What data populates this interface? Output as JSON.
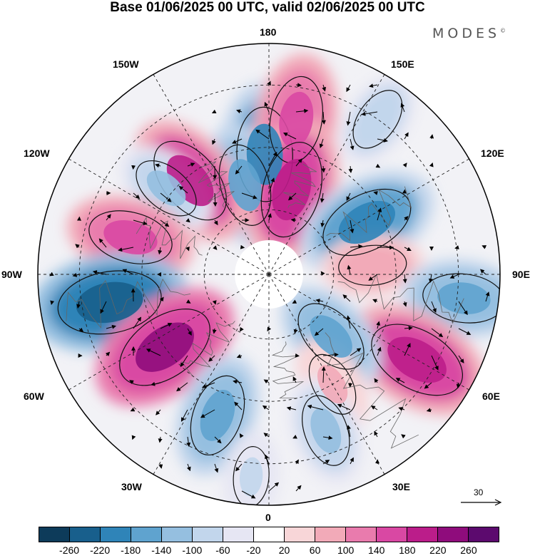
{
  "title": "Base 01/06/2025 00 UTC, valid 02/06/2025 00 UTC",
  "brand": "MODES",
  "brand_mark": "©",
  "longitude_labels": {
    "top": "180",
    "top_left": "150W",
    "top_right": "150E",
    "upper_left": "120W",
    "upper_right": "120E",
    "left": "90W",
    "right": "90E",
    "lower_left": "60W",
    "lower_right": "60E",
    "bottom_left": "30W",
    "bottom_right": "30E",
    "bottom": "0"
  },
  "reference_vector": "30",
  "colorbar": {
    "colors": [
      "#0d3b5a",
      "#185f8c",
      "#2f84b8",
      "#5fa3cf",
      "#95bfe0",
      "#c2d6ec",
      "#e6e6f3",
      "#ffffff",
      "#f8d6d8",
      "#f2aab8",
      "#e97bad",
      "#d948a3",
      "#bb1d8a",
      "#8f0c7c",
      "#5c0a6e"
    ],
    "ticks": [
      "-260",
      "-220",
      "-180",
      "-140",
      "-100",
      "-60",
      "-20",
      "20",
      "60",
      "100",
      "140",
      "180",
      "220",
      "260"
    ]
  },
  "map": {
    "projection": "north polar stereographic",
    "field": "anomaly",
    "anomaly_features": [
      {
        "lon": -178,
        "dist": 0.52,
        "value": -200
      },
      {
        "lon": -165,
        "dist": 0.4,
        "value": -150
      },
      {
        "lon": 170,
        "dist": 0.68,
        "value": 170
      },
      {
        "lon": 165,
        "dist": 0.38,
        "value": 210
      },
      {
        "lon": 145,
        "dist": 0.82,
        "value": -80
      },
      {
        "lon": -140,
        "dist": 0.53,
        "value": 190
      },
      {
        "lon": -130,
        "dist": 0.58,
        "value": -100
      },
      {
        "lon": -105,
        "dist": 0.62,
        "value": 160
      },
      {
        "lon": -80,
        "dist": 0.7,
        "value": -240
      },
      {
        "lon": -55,
        "dist": 0.55,
        "value": 230
      },
      {
        "lon": -20,
        "dist": 0.65,
        "value": -150
      },
      {
        "lon": 118,
        "dist": 0.48,
        "value": -200
      },
      {
        "lon": 95,
        "dist": 0.45,
        "value": 90
      },
      {
        "lon": 83,
        "dist": 0.85,
        "value": -150
      },
      {
        "lon": 60,
        "dist": 0.74,
        "value": 220
      },
      {
        "lon": 45,
        "dist": 0.38,
        "value": -140
      },
      {
        "lon": 30,
        "dist": 0.55,
        "value": 80
      },
      {
        "lon": 20,
        "dist": 0.72,
        "value": -110
      },
      {
        "lon": -5,
        "dist": 0.88,
        "value": -60
      }
    ]
  }
}
